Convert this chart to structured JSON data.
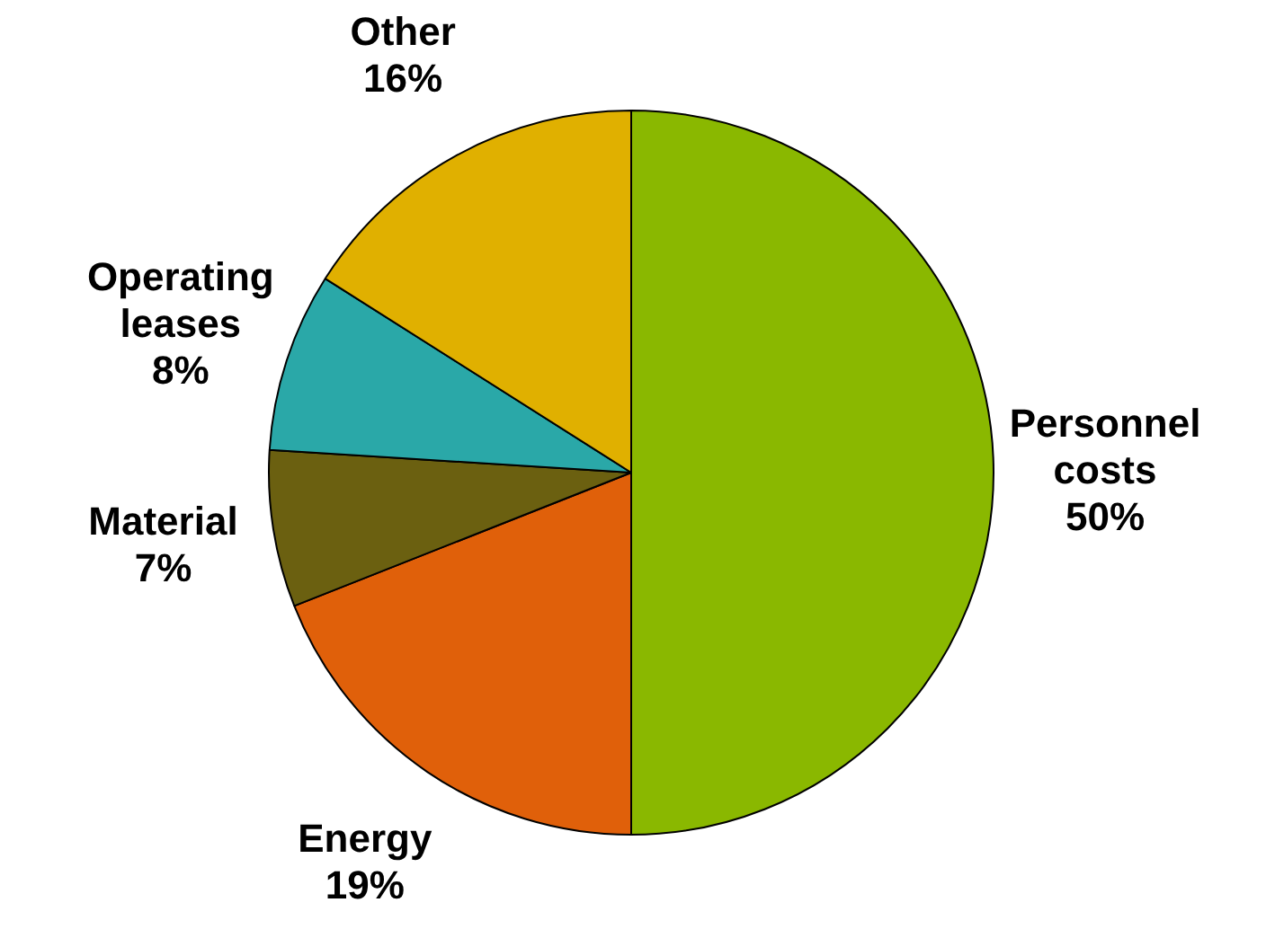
{
  "chart_data": {
    "type": "pie",
    "categories": [
      "Personnel costs",
      "Energy",
      "Material",
      "Operating leases",
      "Other"
    ],
    "values": [
      50,
      19,
      7,
      8,
      16
    ],
    "colors": [
      "#8ab800",
      "#e0600a",
      "#6b6010",
      "#2aa8a8",
      "#e0b000"
    ],
    "value_labels": [
      "50%",
      "19%",
      "7%",
      "8%",
      "16%"
    ],
    "legend": false
  }
}
